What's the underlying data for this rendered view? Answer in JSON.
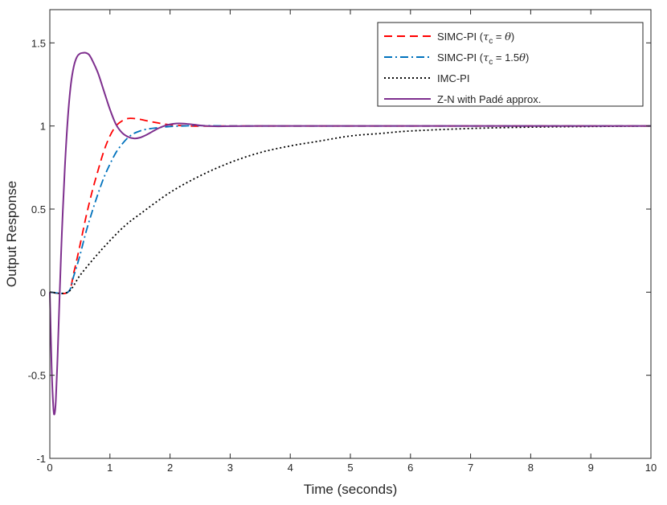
{
  "chart_data": {
    "type": "line",
    "title": "",
    "xlabel": "Time (seconds)",
    "ylabel": "Output Response",
    "xlim": [
      0,
      10
    ],
    "ylim": [
      -1,
      1.7
    ],
    "xticks": [
      0,
      1,
      2,
      3,
      4,
      5,
      6,
      7,
      8,
      9,
      10
    ],
    "yticks": [
      -1,
      -0.5,
      0,
      0.5,
      1,
      1.5
    ],
    "xtick_labels": [
      "0",
      "1",
      "2",
      "3",
      "4",
      "5",
      "6",
      "7",
      "8",
      "9",
      "10"
    ],
    "ytick_labels": [
      "-1",
      "-0.5",
      "0",
      "0.5",
      "1",
      "1.5"
    ],
    "grid": false,
    "legend_position": "top-right",
    "series": [
      {
        "name": "SIMC-PI (τc = θ)",
        "legend_parts": [
          "SIMC-PI (",
          "τ",
          "c",
          " = ",
          "θ",
          ")"
        ],
        "color": "#ff0000",
        "style": "dashed",
        "x": [
          0,
          0.3,
          0.4,
          0.5,
          0.6,
          0.7,
          0.8,
          0.9,
          1.0,
          1.1,
          1.2,
          1.3,
          1.4,
          1.5,
          1.7,
          1.9,
          2.1,
          2.3,
          2.5,
          3.0,
          4.0,
          10.0
        ],
        "y": [
          0,
          0,
          0.12,
          0.28,
          0.45,
          0.6,
          0.73,
          0.85,
          0.94,
          1.0,
          1.03,
          1.045,
          1.045,
          1.04,
          1.025,
          1.012,
          1.004,
          1.0,
          0.999,
          1.0,
          1.0,
          1.0
        ]
      },
      {
        "name": "SIMC-PI (τc = 1.5θ)",
        "legend_parts": [
          "SIMC-PI (",
          "τ",
          "c",
          " = 1.5",
          "θ",
          ")"
        ],
        "color": "#0072bd",
        "style": "dashdot",
        "x": [
          0,
          0.3,
          0.4,
          0.5,
          0.6,
          0.7,
          0.8,
          0.9,
          1.0,
          1.1,
          1.2,
          1.3,
          1.4,
          1.5,
          1.6,
          1.8,
          2.0,
          2.2,
          2.4,
          2.6,
          3.0,
          4.0,
          10.0
        ],
        "y": [
          0,
          0,
          0.1,
          0.22,
          0.36,
          0.48,
          0.59,
          0.69,
          0.77,
          0.84,
          0.89,
          0.93,
          0.955,
          0.97,
          0.98,
          0.99,
          0.997,
          1.0,
          1.002,
          1.002,
          1.0,
          1.0,
          1.0
        ]
      },
      {
        "name": "IMC-PI",
        "legend_parts": [
          "IMC-PI"
        ],
        "color": "#000000",
        "style": "dotted",
        "x": [
          0,
          0.3,
          0.5,
          0.75,
          1.0,
          1.25,
          1.5,
          2.0,
          2.5,
          3.0,
          3.5,
          4.0,
          4.5,
          5.0,
          5.5,
          6.0,
          7.0,
          8.0,
          9.0,
          10.0
        ],
        "y": [
          0,
          0,
          0.1,
          0.21,
          0.31,
          0.4,
          0.47,
          0.6,
          0.7,
          0.78,
          0.84,
          0.88,
          0.91,
          0.94,
          0.955,
          0.97,
          0.985,
          0.993,
          0.997,
          1.0
        ]
      },
      {
        "name": "Z-N with Padé approx.",
        "legend_parts": [
          "Z-N with Padé approx."
        ],
        "color": "#7e2f8e",
        "style": "solid",
        "x": [
          0,
          0.03,
          0.06,
          0.08,
          0.1,
          0.13,
          0.16,
          0.2,
          0.25,
          0.3,
          0.35,
          0.4,
          0.45,
          0.5,
          0.55,
          0.6,
          0.65,
          0.7,
          0.8,
          0.9,
          1.0,
          1.1,
          1.2,
          1.3,
          1.4,
          1.5,
          1.6,
          1.7,
          1.8,
          1.9,
          2.0,
          2.1,
          2.2,
          2.3,
          2.4,
          2.6,
          2.8,
          3.0,
          3.5,
          4.0,
          10.0
        ],
        "y": [
          0,
          -0.45,
          -0.7,
          -0.73,
          -0.65,
          -0.38,
          -0.05,
          0.35,
          0.75,
          1.05,
          1.25,
          1.36,
          1.415,
          1.435,
          1.44,
          1.44,
          1.43,
          1.4,
          1.32,
          1.21,
          1.1,
          1.01,
          0.96,
          0.935,
          0.925,
          0.93,
          0.945,
          0.965,
          0.985,
          1.0,
          1.01,
          1.015,
          1.015,
          1.012,
          1.008,
          1.0,
          0.998,
          0.999,
          1.0,
          1.0,
          1.0
        ]
      }
    ]
  }
}
